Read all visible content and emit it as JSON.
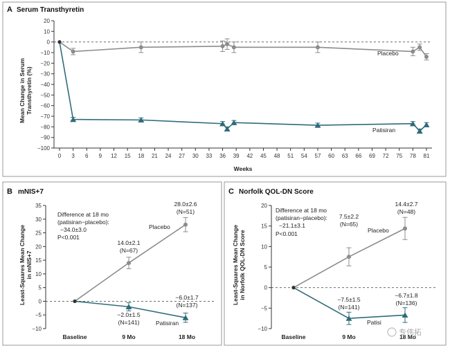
{
  "colors": {
    "placebo": "#8c8c8c",
    "patisiran": "#2f6b7a",
    "axis": "#333333",
    "panel_border": "#9a9a9a"
  },
  "panelA": {
    "letter": "A",
    "title": "Serum Transthyretin",
    "ylabel_line1": "Mean Change in Serum",
    "ylabel_line2": "Transthyretin (%)",
    "xlabel": "Weeks",
    "label_placebo": "Placebo",
    "label_patisiran": "Patisiran"
  },
  "panelB": {
    "letter": "B",
    "title": "mNIS+7",
    "ylabel_line1": "Least-Squares Mean Change",
    "ylabel_line2": "in mNIS+7",
    "diff_line1": "Difference at 18 mo",
    "diff_line2": "(patisiran−placebo):",
    "diff_line3": "−34.0±3.0",
    "diff_line4": "P<0.001",
    "label_placebo": "Placebo",
    "label_patisiran": "Patisiran"
  },
  "panelC": {
    "letter": "C",
    "title": "Norfolk QOL-DN Score",
    "ylabel_line1": "Least-Squares Mean Change",
    "ylabel_line2": "in Norfolk QOL-DN Score",
    "diff_line1": "Difference at 18 mo",
    "diff_line2": "(patisiran−placebo):",
    "diff_line3": "−21.1±3.1",
    "diff_line4": "P<0.001",
    "label_placebo": "Placebo",
    "label_patisiran": "Patisi"
  },
  "watermark": "专伟拓",
  "chart_data": [
    {
      "type": "line",
      "xlabel": "Weeks",
      "ylabel": "Mean Change in Serum Transthyretin (%)",
      "xlim": [
        0,
        82
      ],
      "ylim": [
        -100,
        20
      ],
      "xticks": [
        0,
        3,
        6,
        9,
        12,
        15,
        18,
        21,
        24,
        27,
        30,
        33,
        36,
        39,
        42,
        45,
        48,
        51,
        54,
        57,
        60,
        63,
        66,
        69,
        72,
        75,
        78,
        81
      ],
      "yticks": [
        20,
        10,
        0,
        -10,
        -20,
        -30,
        -40,
        -50,
        -60,
        -70,
        -80,
        -90,
        -100
      ],
      "series": [
        {
          "name": "Placebo",
          "x": [
            0,
            3,
            18,
            36,
            37,
            38.5,
            57,
            78,
            79.5,
            81
          ],
          "y": [
            0,
            -9,
            -5,
            -4,
            -2,
            -5,
            -5,
            -9,
            -5,
            -14
          ],
          "err": [
            0,
            3,
            5,
            5,
            5,
            5,
            5,
            4,
            3,
            3
          ]
        },
        {
          "name": "Patisiran",
          "x": [
            0,
            3,
            18,
            36,
            37,
            38.5,
            57,
            78,
            79.5,
            81
          ],
          "y": [
            0,
            -73,
            -73.5,
            -77,
            -82,
            -76,
            -78.5,
            -77,
            -84,
            -78
          ],
          "err": [
            0,
            2,
            2,
            2,
            2,
            2,
            2,
            2,
            2,
            2
          ]
        }
      ]
    },
    {
      "type": "line",
      "ylabel": "Least-Squares Mean Change in mNIS+7",
      "categories": [
        "Baseline",
        "9 Mo",
        "18 Mo"
      ],
      "ylim": [
        -10,
        35
      ],
      "yticks": [
        35,
        30,
        25,
        20,
        15,
        10,
        5,
        0,
        -5,
        -10
      ],
      "series": [
        {
          "name": "Placebo",
          "values": [
            0,
            14.0,
            28.0
          ],
          "err": [
            0,
            2.1,
            2.6
          ]
        },
        {
          "name": "Patisiran",
          "values": [
            0,
            -2.0,
            -6.0
          ],
          "err": [
            0,
            1.5,
            1.7
          ]
        }
      ],
      "data_labels": [
        {
          "series": "Placebo",
          "point": 1,
          "line1": "14.0±2.1",
          "line2": "(N=67)"
        },
        {
          "series": "Placebo",
          "point": 2,
          "line1": "28.0±2.6",
          "line2": "(N=51)"
        },
        {
          "series": "Patisiran",
          "point": 1,
          "line1": "−2.0±1.5",
          "line2": "(N=141)"
        },
        {
          "series": "Patisiran",
          "point": 2,
          "line1": "−6.0±1.7",
          "line2": "(N=137)"
        }
      ]
    },
    {
      "type": "line",
      "ylabel": "Least-Squares Mean Change in Norfolk QOL-DN Score",
      "categories": [
        "Baseline",
        "9 Mo",
        "18 Mo"
      ],
      "ylim": [
        -10,
        20
      ],
      "yticks": [
        20,
        15,
        10,
        5,
        0,
        -5,
        -10
      ],
      "series": [
        {
          "name": "Placebo",
          "values": [
            0,
            7.5,
            14.4
          ],
          "err": [
            0,
            2.2,
            2.7
          ]
        },
        {
          "name": "Patisiran",
          "values": [
            0,
            -7.5,
            -6.7
          ],
          "err": [
            0,
            1.5,
            1.8
          ]
        }
      ],
      "data_labels": [
        {
          "series": "Placebo",
          "point": 1,
          "line1": "7.5±2.2",
          "line2": "(N=65)"
        },
        {
          "series": "Placebo",
          "point": 2,
          "line1": "14.4±2.7",
          "line2": "(N=48)"
        },
        {
          "series": "Patisiran",
          "point": 1,
          "line1": "−7.5±1.5",
          "line2": "(N=141)"
        },
        {
          "series": "Patisiran",
          "point": 2,
          "line1": "−6.7±1.8",
          "line2": "(N=136)"
        }
      ]
    }
  ]
}
